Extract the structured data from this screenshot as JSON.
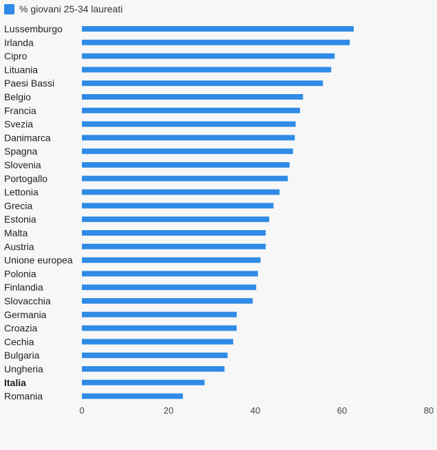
{
  "colors": {
    "bar": "#2f8be6",
    "label": "#222222",
    "tick": "#444444"
  },
  "chart_data": {
    "type": "bar",
    "orientation": "horizontal",
    "categories": [
      "Lussemburgo",
      "Irlanda",
      "Cipro",
      "Lituania",
      "Paesi Bassi",
      "Belgio",
      "Francia",
      "Svezia",
      "Danimarca",
      "Spagna",
      "Slovenia",
      "Portogallo",
      "Lettonia",
      "Grecia",
      "Estonia",
      "Malta",
      "Austria",
      "Unione europea",
      "Polonia",
      "Finlandia",
      "Slovacchia",
      "Germania",
      "Croazia",
      "Cechia",
      "Bulgaria",
      "Ungheria",
      "Italia",
      "Romania"
    ],
    "series": [
      {
        "name": "% giovani 25-34 laureati",
        "values": [
          62.7,
          61.8,
          58.3,
          57.5,
          55.6,
          51.0,
          50.3,
          49.3,
          49.1,
          48.7,
          47.9,
          47.5,
          45.6,
          44.2,
          43.2,
          42.4,
          42.4,
          41.2,
          40.6,
          40.2,
          39.4,
          35.7,
          35.7,
          34.9,
          33.6,
          32.9,
          28.3,
          23.3
        ]
      }
    ],
    "highlight": "Italia",
    "xlim": [
      0,
      80
    ],
    "xticks": [
      0,
      20,
      40,
      60,
      80
    ],
    "grid": false,
    "legend_position": "top-left"
  }
}
